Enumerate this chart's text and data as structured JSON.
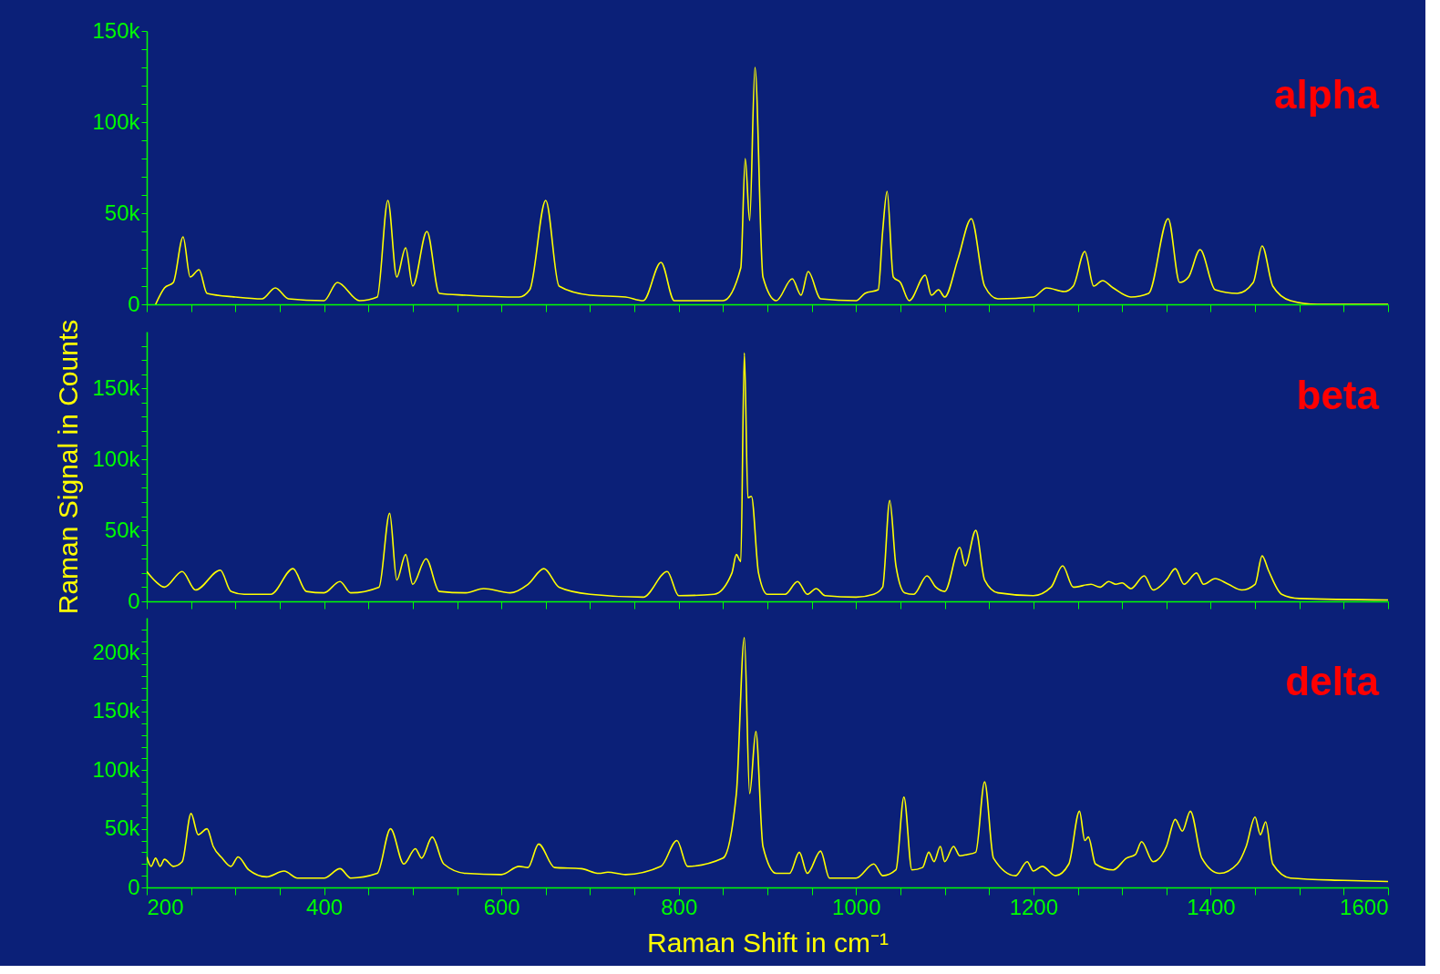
{
  "chart_data": [
    {
      "type": "line",
      "xlim": [
        200,
        1600
      ],
      "ylim": [
        0,
        150000
      ],
      "tick_labels": "y",
      "grid": false,
      "xticks": [
        200,
        {
          "value": 250,
          "label": null
        },
        {
          "value": 300,
          "label": null
        },
        {
          "value": 350,
          "label": null
        },
        400,
        {
          "value": 450,
          "label": null
        },
        {
          "value": 500,
          "label": null
        },
        {
          "value": 550,
          "label": null
        },
        600,
        {
          "value": 650,
          "label": null
        },
        {
          "value": 700,
          "label": null
        },
        {
          "value": 750,
          "label": null
        },
        800,
        {
          "value": 850,
          "label": null
        },
        {
          "value": 900,
          "label": null
        },
        {
          "value": 950,
          "label": null
        },
        1000,
        {
          "value": 1050,
          "label": null
        },
        {
          "value": 1100,
          "label": null
        },
        {
          "value": 1150,
          "label": null
        },
        1200,
        {
          "value": 1250,
          "label": null
        },
        {
          "value": 1300,
          "label": null
        },
        {
          "value": 1350,
          "label": null
        },
        1400,
        {
          "value": 1450,
          "label": null
        },
        {
          "value": 1500,
          "label": null
        },
        {
          "value": 1550,
          "label": null
        },
        1600
      ],
      "yticks": [
        0,
        {
          "value": 10000,
          "label": null
        },
        {
          "value": 20000,
          "label": null
        },
        {
          "value": 30000,
          "label": null
        },
        {
          "value": 40000,
          "label": null
        },
        {
          "value": 50000,
          "label": "50k"
        },
        {
          "value": 60000,
          "label": null
        },
        {
          "value": 70000,
          "label": null
        },
        {
          "value": 80000,
          "label": null
        },
        {
          "value": 90000,
          "label": null
        },
        {
          "value": 100000,
          "label": "100k"
        },
        {
          "value": 110000,
          "label": null
        },
        {
          "value": 120000,
          "label": null
        },
        {
          "value": 130000,
          "label": null
        },
        {
          "value": 140000,
          "label": null
        },
        {
          "value": 150000,
          "label": "150k"
        }
      ],
      "series": [
        {
          "name": "alpha",
          "color": "#ffff00",
          "x": [
            210,
            220,
            230,
            241,
            249,
            259,
            268,
            300,
            330,
            345,
            360,
            400,
            415,
            440,
            460,
            472,
            482,
            492,
            500,
            516,
            530,
            560,
            620,
            632,
            650,
            665,
            700,
            740,
            760,
            780,
            795,
            850,
            870,
            875,
            880,
            886,
            895,
            910,
            928,
            938,
            946,
            960,
            1000,
            1010,
            1025,
            1030,
            1035,
            1042,
            1050,
            1060,
            1078,
            1085,
            1093,
            1100,
            1115,
            1130,
            1145,
            1160,
            1200,
            1215,
            1235,
            1245,
            1258,
            1268,
            1278,
            1290,
            1310,
            1330,
            1352,
            1365,
            1375,
            1388,
            1405,
            1430,
            1448,
            1458,
            1470,
            1490,
            1520,
            1600
          ],
          "values": [
            0,
            9000,
            12000,
            37000,
            15000,
            19000,
            6000,
            4000,
            3000,
            9000,
            3000,
            2000,
            12000,
            2000,
            4000,
            57000,
            15000,
            31000,
            10000,
            40000,
            6000,
            5000,
            4000,
            8000,
            57000,
            10000,
            5000,
            4000,
            2000,
            23000,
            2000,
            2000,
            20000,
            80000,
            46000,
            130000,
            15000,
            2000,
            14000,
            5000,
            18000,
            3000,
            2000,
            6000,
            8000,
            40000,
            62000,
            15000,
            12000,
            2000,
            16000,
            5000,
            8000,
            4000,
            25000,
            47000,
            10000,
            3000,
            4000,
            9000,
            7000,
            10000,
            29000,
            10000,
            13000,
            9000,
            4000,
            6000,
            47000,
            12000,
            15000,
            30000,
            8000,
            6000,
            12000,
            32000,
            10000,
            2000,
            0,
            0
          ]
        }
      ]
    },
    {
      "type": "line",
      "xlim": [
        200,
        1600
      ],
      "ylim": [
        0,
        190000
      ],
      "tick_labels": "y",
      "grid": false,
      "ylabel": "Raman Signal in Counts",
      "xticks": [
        200,
        {
          "value": 250,
          "label": null
        },
        {
          "value": 300,
          "label": null
        },
        {
          "value": 350,
          "label": null
        },
        400,
        {
          "value": 450,
          "label": null
        },
        {
          "value": 500,
          "label": null
        },
        {
          "value": 550,
          "label": null
        },
        600,
        {
          "value": 650,
          "label": null
        },
        {
          "value": 700,
          "label": null
        },
        {
          "value": 750,
          "label": null
        },
        800,
        {
          "value": 850,
          "label": null
        },
        {
          "value": 900,
          "label": null
        },
        {
          "value": 950,
          "label": null
        },
        1000,
        {
          "value": 1050,
          "label": null
        },
        {
          "value": 1100,
          "label": null
        },
        {
          "value": 1150,
          "label": null
        },
        1200,
        {
          "value": 1250,
          "label": null
        },
        {
          "value": 1300,
          "label": null
        },
        {
          "value": 1350,
          "label": null
        },
        1400,
        {
          "value": 1450,
          "label": null
        },
        {
          "value": 1500,
          "label": null
        },
        {
          "value": 1550,
          "label": null
        },
        1600
      ],
      "yticks": [
        0,
        {
          "value": 10000,
          "label": null
        },
        {
          "value": 20000,
          "label": null
        },
        {
          "value": 30000,
          "label": null
        },
        {
          "value": 40000,
          "label": null
        },
        {
          "value": 50000,
          "label": "50k"
        },
        {
          "value": 60000,
          "label": null
        },
        {
          "value": 70000,
          "label": null
        },
        {
          "value": 80000,
          "label": null
        },
        {
          "value": 90000,
          "label": null
        },
        {
          "value": 100000,
          "label": "100k"
        },
        {
          "value": 110000,
          "label": null
        },
        {
          "value": 120000,
          "label": null
        },
        {
          "value": 130000,
          "label": null
        },
        {
          "value": 140000,
          "label": null
        },
        {
          "value": 150000,
          "label": "150k"
        },
        {
          "value": 160000,
          "label": null
        },
        {
          "value": 170000,
          "label": null
        },
        {
          "value": 180000,
          "label": null
        }
      ],
      "series": [
        {
          "name": "beta",
          "color": "#ffff00",
          "x": [
            200,
            210,
            220,
            240,
            255,
            283,
            295,
            310,
            340,
            365,
            380,
            400,
            418,
            430,
            462,
            474,
            482,
            492,
            500,
            515,
            530,
            560,
            580,
            610,
            630,
            648,
            665,
            700,
            760,
            787,
            800,
            840,
            860,
            865,
            870,
            874,
            878,
            882,
            890,
            900,
            920,
            934,
            945,
            955,
            965,
            1000,
            1020,
            1030,
            1038,
            1045,
            1055,
            1065,
            1080,
            1090,
            1100,
            1117,
            1123,
            1135,
            1145,
            1160,
            1200,
            1220,
            1233,
            1245,
            1265,
            1275,
            1285,
            1293,
            1300,
            1310,
            1325,
            1335,
            1350,
            1360,
            1370,
            1384,
            1392,
            1405,
            1420,
            1435,
            1450,
            1458,
            1465,
            1480,
            1500,
            1600
          ],
          "values": [
            21000,
            14000,
            10000,
            21000,
            8000,
            22000,
            7000,
            5000,
            5000,
            23000,
            7000,
            6000,
            14000,
            6000,
            10000,
            62000,
            15000,
            33000,
            12000,
            30000,
            7000,
            6000,
            9000,
            6000,
            12000,
            23000,
            10000,
            5000,
            3000,
            21000,
            4000,
            5000,
            20000,
            33000,
            28000,
            175000,
            73000,
            74000,
            20000,
            5000,
            5000,
            14000,
            5000,
            9000,
            4000,
            3000,
            5000,
            10000,
            71000,
            25000,
            6000,
            5000,
            18000,
            10000,
            7000,
            38000,
            25000,
            50000,
            15000,
            6000,
            4000,
            10000,
            25000,
            10000,
            12000,
            10000,
            14000,
            12000,
            13000,
            9000,
            18000,
            8000,
            15000,
            23000,
            12000,
            20000,
            12000,
            16000,
            12000,
            8000,
            12000,
            32000,
            22000,
            5000,
            2000,
            1000
          ]
        }
      ]
    },
    {
      "type": "line",
      "xlim": [
        200,
        1600
      ],
      "ylim": [
        0,
        230000
      ],
      "grid": false,
      "xlabel": "Raman Shift in cm⁻¹",
      "xticks": [
        200,
        {
          "value": 250,
          "label": null
        },
        {
          "value": 300,
          "label": null
        },
        {
          "value": 350,
          "label": null
        },
        400,
        {
          "value": 450,
          "label": null
        },
        {
          "value": 500,
          "label": null
        },
        {
          "value": 550,
          "label": null
        },
        600,
        {
          "value": 650,
          "label": null
        },
        {
          "value": 700,
          "label": null
        },
        {
          "value": 750,
          "label": null
        },
        800,
        {
          "value": 850,
          "label": null
        },
        {
          "value": 900,
          "label": null
        },
        {
          "value": 950,
          "label": null
        },
        1000,
        {
          "value": 1050,
          "label": null
        },
        {
          "value": 1100,
          "label": null
        },
        {
          "value": 1150,
          "label": null
        },
        1200,
        {
          "value": 1250,
          "label": null
        },
        {
          "value": 1300,
          "label": null
        },
        {
          "value": 1350,
          "label": null
        },
        1400,
        {
          "value": 1450,
          "label": null
        },
        {
          "value": 1500,
          "label": null
        },
        {
          "value": 1550,
          "label": null
        },
        1600
      ],
      "yticks": [
        0,
        {
          "value": 10000,
          "label": null
        },
        {
          "value": 20000,
          "label": null
        },
        {
          "value": 30000,
          "label": null
        },
        {
          "value": 40000,
          "label": null
        },
        {
          "value": 50000,
          "label": "50k"
        },
        {
          "value": 60000,
          "label": null
        },
        {
          "value": 70000,
          "label": null
        },
        {
          "value": 80000,
          "label": null
        },
        {
          "value": 90000,
          "label": null
        },
        {
          "value": 100000,
          "label": "100k"
        },
        {
          "value": 110000,
          "label": null
        },
        {
          "value": 120000,
          "label": null
        },
        {
          "value": 130000,
          "label": null
        },
        {
          "value": 140000,
          "label": null
        },
        {
          "value": 150000,
          "label": "150k"
        },
        {
          "value": 160000,
          "label": null
        },
        {
          "value": 170000,
          "label": null
        },
        {
          "value": 180000,
          "label": null
        },
        {
          "value": 190000,
          "label": null
        },
        {
          "value": 200000,
          "label": "200k"
        },
        {
          "value": 210000,
          "label": null
        },
        {
          "value": 220000,
          "label": null
        }
      ],
      "series": [
        {
          "name": "delta",
          "color": "#ffff00",
          "x": [
            200,
            205,
            210,
            215,
            220,
            230,
            240,
            250,
            258,
            268,
            275,
            285,
            295,
            303,
            315,
            335,
            355,
            370,
            400,
            418,
            430,
            460,
            475,
            490,
            503,
            510,
            522,
            535,
            560,
            600,
            620,
            630,
            642,
            660,
            690,
            710,
            720,
            740,
            780,
            798,
            810,
            850,
            865,
            874,
            880,
            887,
            895,
            910,
            925,
            936,
            945,
            960,
            970,
            1000,
            1020,
            1030,
            1045,
            1054,
            1063,
            1075,
            1082,
            1088,
            1095,
            1100,
            1110,
            1117,
            1125,
            1135,
            1145,
            1155,
            1180,
            1193,
            1200,
            1210,
            1225,
            1240,
            1252,
            1258,
            1262,
            1270,
            1290,
            1305,
            1315,
            1322,
            1335,
            1350,
            1360,
            1368,
            1377,
            1390,
            1410,
            1430,
            1440,
            1450,
            1456,
            1462,
            1470,
            1490,
            1550,
            1600
          ],
          "values": [
            26000,
            18000,
            25000,
            18000,
            24000,
            18000,
            22000,
            63000,
            45000,
            50000,
            35000,
            25000,
            18000,
            26000,
            15000,
            9000,
            14000,
            8000,
            8000,
            16000,
            8000,
            12000,
            50000,
            20000,
            33000,
            25000,
            43000,
            20000,
            12000,
            11000,
            18000,
            17000,
            37000,
            17000,
            16000,
            12000,
            13000,
            11000,
            18000,
            40000,
            18000,
            25000,
            80000,
            213000,
            80000,
            133000,
            35000,
            12000,
            12000,
            30000,
            12000,
            31000,
            8000,
            8000,
            20000,
            10000,
            15000,
            77000,
            15000,
            17000,
            30000,
            22000,
            35000,
            22000,
            35000,
            27000,
            28000,
            30000,
            90000,
            25000,
            10000,
            22000,
            14000,
            18000,
            10000,
            20000,
            65000,
            40000,
            43000,
            20000,
            15000,
            25000,
            28000,
            39000,
            22000,
            35000,
            58000,
            48000,
            65000,
            25000,
            12000,
            20000,
            35000,
            60000,
            45000,
            56000,
            20000,
            8000,
            6000,
            5000
          ]
        }
      ]
    }
  ]
}
